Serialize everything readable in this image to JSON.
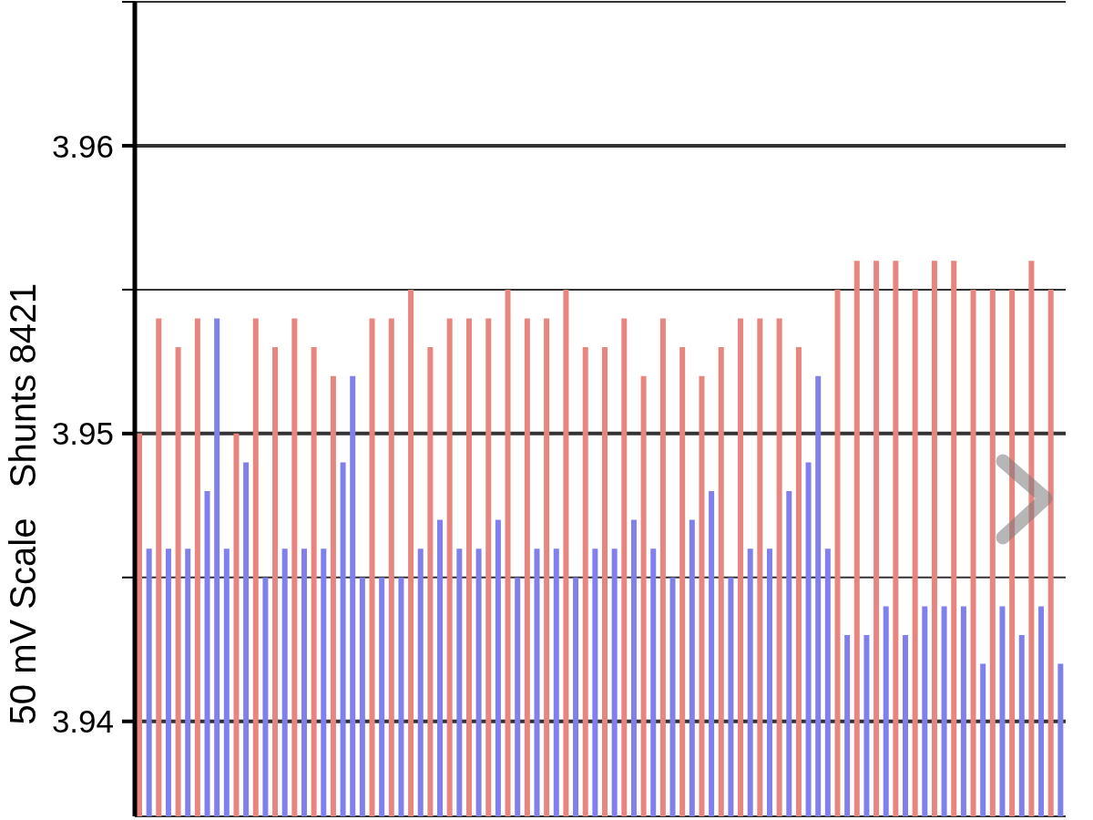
{
  "chart_data": {
    "type": "bar",
    "ylabel": "50 mV Scale   Shunts 8421",
    "categories": [
      null,
      null,
      null,
      null,
      null,
      null,
      null,
      null,
      null,
      null,
      null,
      null,
      null,
      null,
      null,
      null,
      null,
      null,
      null,
      null,
      null,
      null,
      null,
      null,
      null,
      null,
      null,
      null,
      null,
      null,
      null,
      null,
      null,
      null,
      null,
      null,
      null,
      null,
      null,
      null,
      null,
      null,
      null,
      null,
      null,
      null,
      null,
      null,
      null,
      null,
      null,
      null,
      null,
      null,
      null,
      null,
      null,
      null,
      null,
      null,
      null,
      null,
      null,
      null,
      null,
      null,
      null,
      null,
      null,
      null,
      null,
      null,
      null,
      null,
      null,
      null,
      null,
      null,
      null,
      null,
      null,
      null,
      null,
      null,
      null,
      null,
      null,
      null,
      null,
      null,
      null,
      null,
      null,
      null,
      null,
      null
    ],
    "values": [
      3.95,
      3.946,
      3.954,
      3.946,
      3.953,
      3.946,
      3.954,
      3.948,
      3.954,
      3.946,
      3.95,
      3.949,
      3.954,
      3.945,
      3.953,
      3.946,
      3.954,
      3.946,
      3.953,
      3.946,
      3.952,
      3.949,
      3.952,
      3.945,
      3.954,
      3.945,
      3.954,
      3.945,
      3.955,
      3.946,
      3.953,
      3.947,
      3.954,
      3.946,
      3.954,
      3.946,
      3.954,
      3.947,
      3.955,
      3.945,
      3.954,
      3.946,
      3.954,
      3.946,
      3.955,
      3.945,
      3.953,
      3.946,
      3.953,
      3.946,
      3.954,
      3.947,
      3.952,
      3.946,
      3.954,
      3.945,
      3.953,
      3.947,
      3.952,
      3.948,
      3.953,
      3.945,
      3.954,
      3.946,
      3.954,
      3.946,
      3.954,
      3.948,
      3.953,
      3.949,
      3.952,
      3.946,
      3.955,
      3.943,
      3.956,
      3.943,
      3.956,
      3.944,
      3.956,
      3.943,
      3.955,
      3.944,
      3.956,
      3.944,
      3.956,
      3.944,
      3.955,
      3.942,
      3.955,
      3.944,
      3.955,
      3.943,
      3.956,
      3.944,
      3.955,
      3.942
    ],
    "colors": [
      "#e8857f",
      "#8080ec",
      "#e8857f",
      "#8080ec",
      "#e8857f",
      "#8080ec",
      "#e8857f",
      "#8080ec",
      "#8080ec",
      "#8080ec",
      "#e8857f",
      "#8080ec",
      "#e8857f",
      "#8080ec",
      "#e8857f",
      "#8080ec",
      "#e8857f",
      "#8080ec",
      "#e8857f",
      "#8080ec",
      "#e8857f",
      "#8080ec",
      "#8080ec",
      "#8080ec",
      "#e8857f",
      "#8080ec",
      "#e8857f",
      "#8080ec",
      "#e8857f",
      "#8080ec",
      "#e8857f",
      "#8080ec",
      "#e8857f",
      "#8080ec",
      "#e8857f",
      "#8080ec",
      "#e8857f",
      "#8080ec",
      "#e8857f",
      "#8080ec",
      "#e8857f",
      "#8080ec",
      "#e8857f",
      "#8080ec",
      "#e8857f",
      "#8080ec",
      "#e8857f",
      "#8080ec",
      "#e8857f",
      "#8080ec",
      "#e8857f",
      "#8080ec",
      "#e8857f",
      "#8080ec",
      "#e8857f",
      "#8080ec",
      "#e8857f",
      "#8080ec",
      "#e8857f",
      "#8080ec",
      "#e8857f",
      "#8080ec",
      "#e8857f",
      "#8080ec",
      "#e8857f",
      "#8080ec",
      "#e8857f",
      "#8080ec",
      "#e8857f",
      "#8080ec",
      "#8080ec",
      "#8080ec",
      "#e8857f",
      "#8080ec",
      "#e8857f",
      "#8080ec",
      "#e8857f",
      "#8080ec",
      "#e8857f",
      "#8080ec",
      "#e8857f",
      "#8080ec",
      "#e8857f",
      "#8080ec",
      "#e8857f",
      "#8080ec",
      "#e8857f",
      "#8080ec",
      "#e8857f",
      "#8080ec",
      "#e8857f",
      "#8080ec",
      "#e8857f",
      "#8080ec",
      "#e8857f",
      "#8080ec"
    ],
    "ylim": [
      3.9367,
      3.965
    ],
    "yticks": [
      3.94,
      {
        "value": 3.945,
        "label": null
      },
      3.95,
      {
        "value": 3.955,
        "label": null
      },
      3.96,
      {
        "value": 3.965,
        "label": null
      }
    ],
    "grid": "y"
  }
}
